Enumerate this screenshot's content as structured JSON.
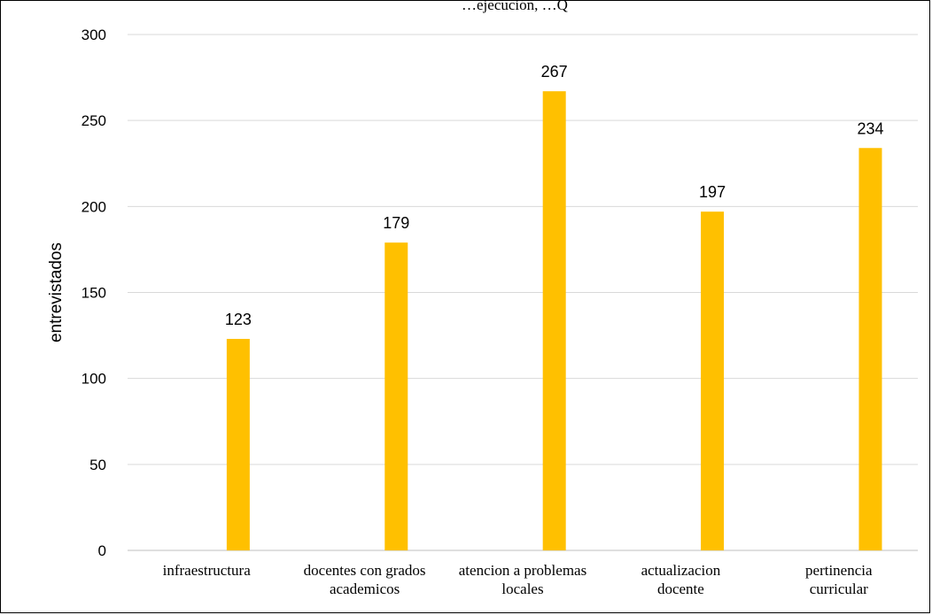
{
  "header_fragment": "…ejecución, …Q",
  "chart_data": {
    "type": "bar",
    "title": "",
    "xlabel": "",
    "ylabel": "entrevistados",
    "categories": [
      "infraestructura",
      "docentes con grados academicos",
      "atencion a problemas locales",
      "actualizacion docente",
      "pertinencia curricular"
    ],
    "values": [
      123,
      179,
      267,
      197,
      234
    ],
    "ylim": [
      0,
      300
    ],
    "yticks": [
      0,
      50,
      100,
      150,
      200,
      250,
      300
    ],
    "bar_color": "#FFC000",
    "grid": true,
    "legend": "none",
    "data_labels": true
  }
}
